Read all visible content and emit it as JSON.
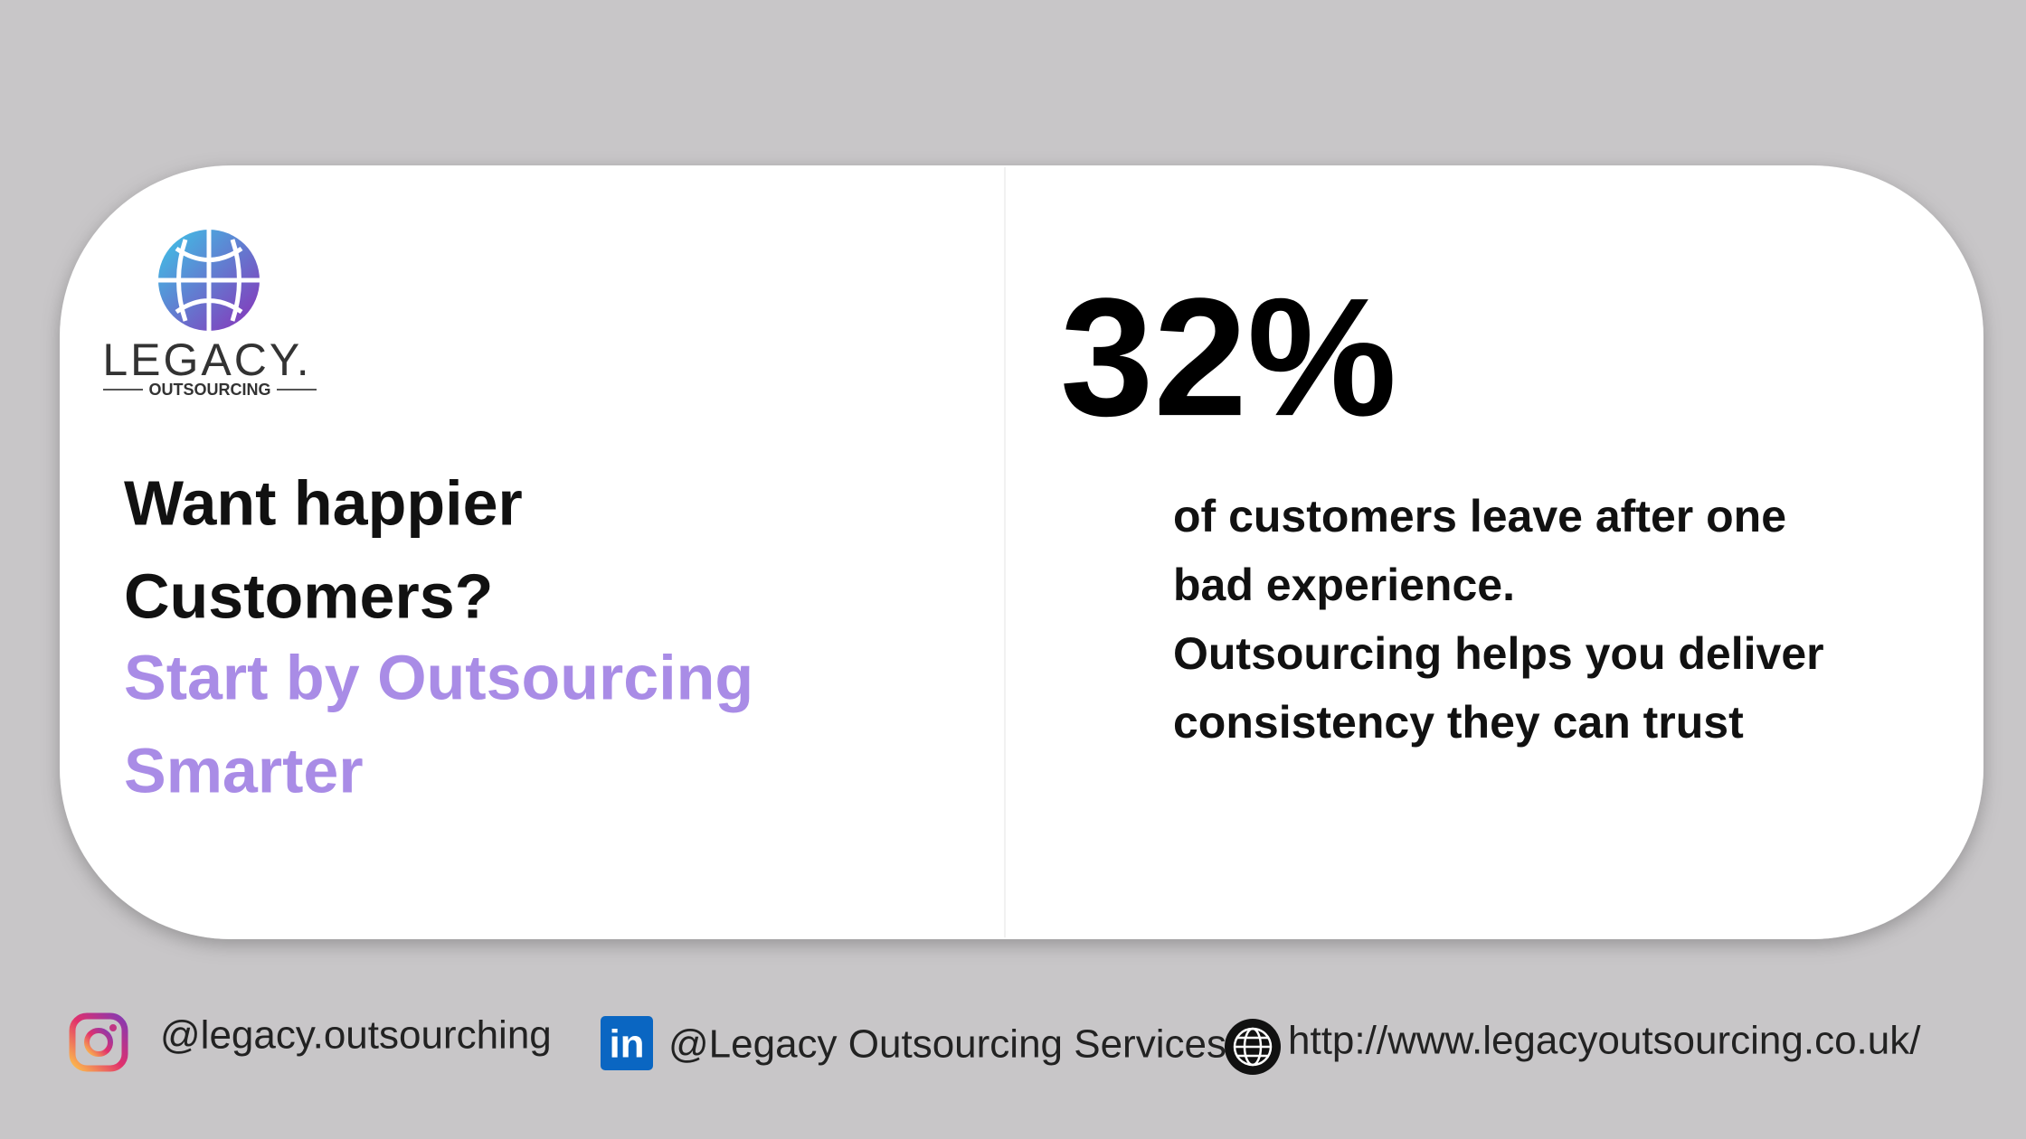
{
  "logo": {
    "name": "LEGACY.",
    "tagline": "OUTSOURCING"
  },
  "heading": {
    "lines": [
      "Want happier",
      "Customers?"
    ],
    "highlight": [
      "Start by Outsourcing",
      "Smarter"
    ]
  },
  "stat": {
    "value": "32%",
    "text": [
      "of customers leave after one",
      "bad experience.",
      "Outsourcing helps you deliver",
      "consistency they can trust"
    ]
  },
  "footer": {
    "instagram": "@legacy.outsourching",
    "linkedin": "@Legacy Outsourcing Services",
    "website": "http://www.legacyoutsourcing.co.uk/"
  }
}
